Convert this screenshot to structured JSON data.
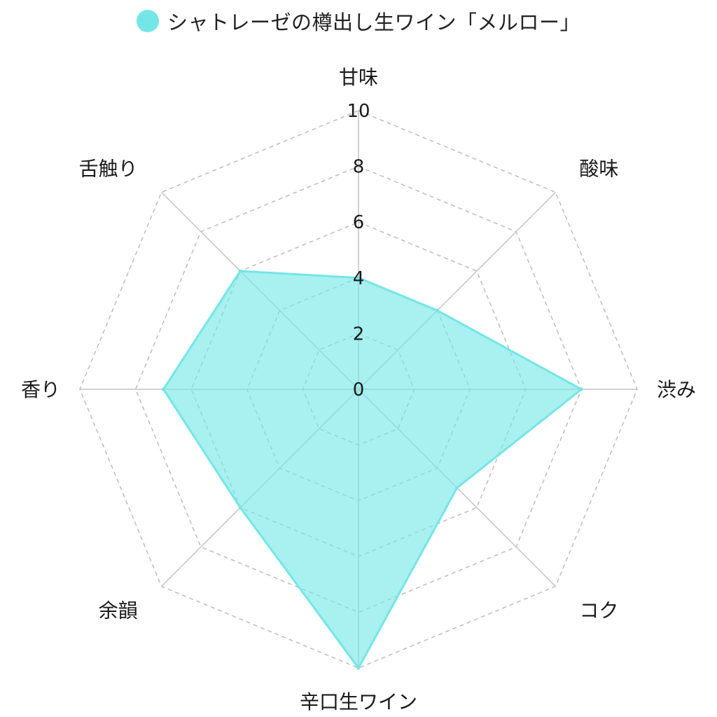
{
  "legend": {
    "label": "シャトレーゼの樽出し生ワイン「メルロー」"
  },
  "colors": {
    "series_fill": "#74e6e6",
    "series_stroke": "#74e6e6",
    "grid": "#bdbdbd",
    "spoke": "#c4c4c4"
  },
  "chart_data": {
    "type": "radar",
    "axes": [
      "甘味",
      "酸味",
      "渋み",
      "コク",
      "辛口生ワイン",
      "余韻",
      "香り",
      "舌触り"
    ],
    "series": [
      {
        "name": "シャトレーゼの樽出し生ワイン「メルロー」",
        "values": [
          4,
          4,
          8,
          5,
          10,
          6,
          7,
          6
        ]
      }
    ],
    "r_range": [
      0,
      10
    ],
    "ticks": [
      "0",
      "2",
      "4",
      "6",
      "8",
      "10"
    ],
    "grid": true,
    "legend_position": "top"
  }
}
